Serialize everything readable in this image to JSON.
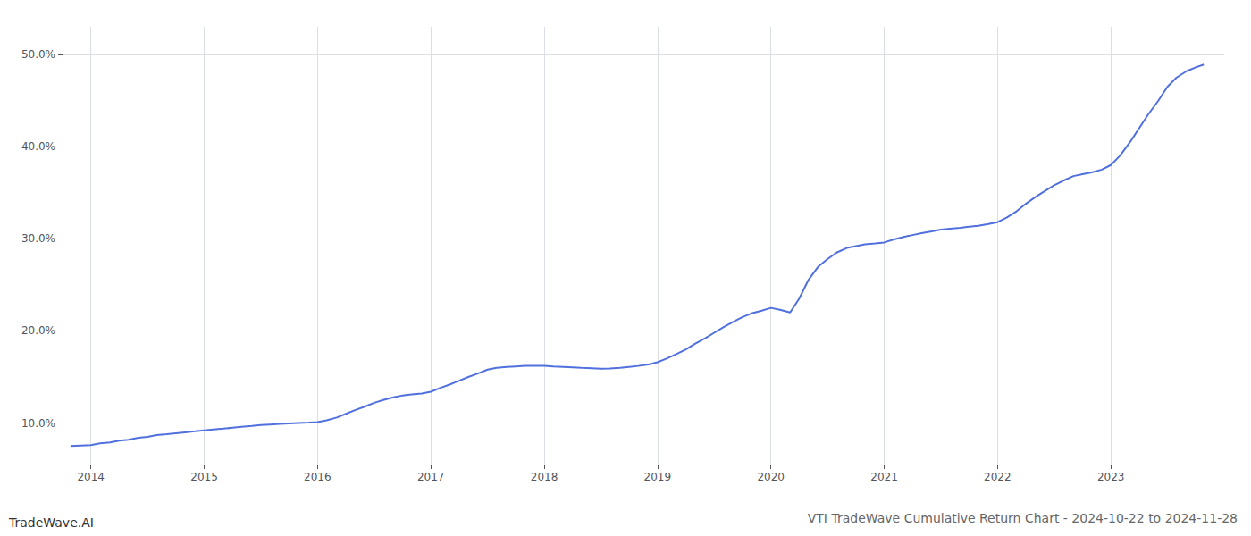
{
  "chart_data": {
    "type": "line",
    "title": "VTI TradeWave Cumulative Return Chart - 2024-10-22 to 2024-11-28",
    "annotations": [
      "TradeWave.AI"
    ],
    "x": [
      2013.82,
      2014.0,
      2014.08,
      2014.17,
      2014.25,
      2014.33,
      2014.42,
      2014.5,
      2014.58,
      2014.67,
      2014.75,
      2014.83,
      2014.92,
      2015.0,
      2015.08,
      2015.17,
      2015.25,
      2015.33,
      2015.42,
      2015.5,
      2015.58,
      2015.67,
      2015.75,
      2015.83,
      2015.92,
      2016.0,
      2016.08,
      2016.17,
      2016.25,
      2016.33,
      2016.42,
      2016.5,
      2016.58,
      2016.67,
      2016.75,
      2016.83,
      2016.92,
      2017.0,
      2017.08,
      2017.17,
      2017.25,
      2017.33,
      2017.42,
      2017.5,
      2017.58,
      2017.67,
      2017.75,
      2017.83,
      2017.92,
      2018.0,
      2018.08,
      2018.17,
      2018.25,
      2018.33,
      2018.42,
      2018.5,
      2018.58,
      2018.67,
      2018.75,
      2018.83,
      2018.92,
      2019.0,
      2019.08,
      2019.17,
      2019.25,
      2019.33,
      2019.42,
      2019.5,
      2019.58,
      2019.67,
      2019.75,
      2019.83,
      2019.92,
      2020.0,
      2020.08,
      2020.17,
      2020.25,
      2020.33,
      2020.42,
      2020.5,
      2020.58,
      2020.67,
      2020.75,
      2020.83,
      2020.92,
      2021.0,
      2021.08,
      2021.17,
      2021.25,
      2021.33,
      2021.42,
      2021.5,
      2021.58,
      2021.67,
      2021.75,
      2021.83,
      2021.92,
      2022.0,
      2022.08,
      2022.17,
      2022.25,
      2022.33,
      2022.42,
      2022.5,
      2022.58,
      2022.67,
      2022.75,
      2022.83,
      2022.92,
      2023.0,
      2023.08,
      2023.17,
      2023.25,
      2023.33,
      2023.42,
      2023.5,
      2023.58,
      2023.67,
      2023.75,
      2023.82
    ],
    "values": [
      7.5,
      7.6,
      7.8,
      7.9,
      8.1,
      8.2,
      8.4,
      8.5,
      8.7,
      8.8,
      8.9,
      9.0,
      9.1,
      9.2,
      9.3,
      9.4,
      9.5,
      9.6,
      9.7,
      9.8,
      9.85,
      9.9,
      9.95,
      10.0,
      10.05,
      10.1,
      10.3,
      10.6,
      11.0,
      11.4,
      11.8,
      12.2,
      12.5,
      12.8,
      13.0,
      13.1,
      13.2,
      13.4,
      13.8,
      14.2,
      14.6,
      15.0,
      15.4,
      15.8,
      16.0,
      16.1,
      16.15,
      16.2,
      16.2,
      16.2,
      16.15,
      16.1,
      16.05,
      16.0,
      15.95,
      15.9,
      15.92,
      16.0,
      16.1,
      16.2,
      16.35,
      16.6,
      17.0,
      17.5,
      18.0,
      18.6,
      19.2,
      19.8,
      20.4,
      21.0,
      21.5,
      21.9,
      22.2,
      22.5,
      22.3,
      22.0,
      23.5,
      25.5,
      27.0,
      27.8,
      28.5,
      29.0,
      29.2,
      29.4,
      29.5,
      29.6,
      29.9,
      30.2,
      30.4,
      30.6,
      30.8,
      31.0,
      31.1,
      31.2,
      31.3,
      31.4,
      31.6,
      31.8,
      32.3,
      33.0,
      33.8,
      34.5,
      35.2,
      35.8,
      36.3,
      36.8,
      37.0,
      37.2,
      37.5,
      38.0,
      39.0,
      40.5,
      42.0,
      43.5,
      45.0,
      46.5,
      47.5,
      48.2,
      48.6,
      48.9
    ],
    "xlim": [
      2013.75,
      2024.0
    ],
    "ylim": [
      5.5,
      53.0
    ],
    "xticks": [
      2014,
      2015,
      2016,
      2017,
      2018,
      2019,
      2020,
      2021,
      2022,
      2023
    ],
    "yticks": [
      {
        "value": 10.0,
        "label": "10.0%"
      },
      {
        "value": 20.0,
        "label": "20.0%"
      },
      {
        "value": 30.0,
        "label": "30.0%"
      },
      {
        "value": 40.0,
        "label": "40.0%"
      },
      {
        "value": 50.0,
        "label": "50.0%"
      }
    ],
    "grid": true
  }
}
